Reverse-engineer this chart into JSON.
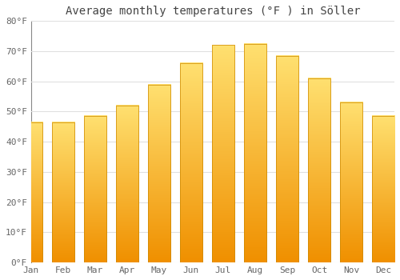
{
  "title": "Average monthly temperatures (°F ) in Söller",
  "months": [
    "Jan",
    "Feb",
    "Mar",
    "Apr",
    "May",
    "Jun",
    "Jul",
    "Aug",
    "Sep",
    "Oct",
    "Nov",
    "Dec"
  ],
  "values": [
    46.5,
    46.5,
    48.5,
    52,
    59,
    66,
    72,
    72.5,
    68.5,
    61,
    53,
    48.5
  ],
  "bar_color_mid": "#FFC020",
  "bar_color_bottom": "#F09000",
  "bar_color_top": "#FFE070",
  "ylim": [
    0,
    80
  ],
  "yticks": [
    0,
    10,
    20,
    30,
    40,
    50,
    60,
    70,
    80
  ],
  "ytick_labels": [
    "0°F",
    "10°F",
    "20°F",
    "30°F",
    "40°F",
    "50°F",
    "60°F",
    "70°F",
    "80°F"
  ],
  "background_color": "#FFFFFF",
  "grid_color": "#E0E0E0",
  "title_fontsize": 10,
  "tick_fontsize": 8,
  "bar_edge_color": "#CC8800",
  "bar_width": 0.7
}
